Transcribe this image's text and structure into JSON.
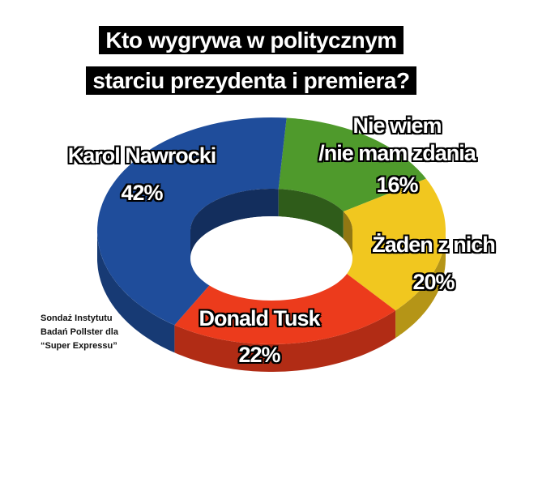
{
  "chart_data": {
    "type": "pie",
    "title": [
      "Kto wygrywa w politycznym",
      "starciu prezydenta i premiera?"
    ],
    "categories": [
      "Nie wiem\n/nie mam zdania",
      "Żaden z nich",
      "Donald Tusk",
      "Karol Nawrocki"
    ],
    "values": [
      16,
      20,
      22,
      42
    ],
    "value_labels": [
      "16%",
      "20%",
      "22%",
      "42%"
    ],
    "colors": [
      "#4f9a2c",
      "#f1c71f",
      "#ec3b1c",
      "#1f4d9b"
    ],
    "source": "Sondaż Instytutu Badań Pollster dla “Super Expressu”"
  }
}
